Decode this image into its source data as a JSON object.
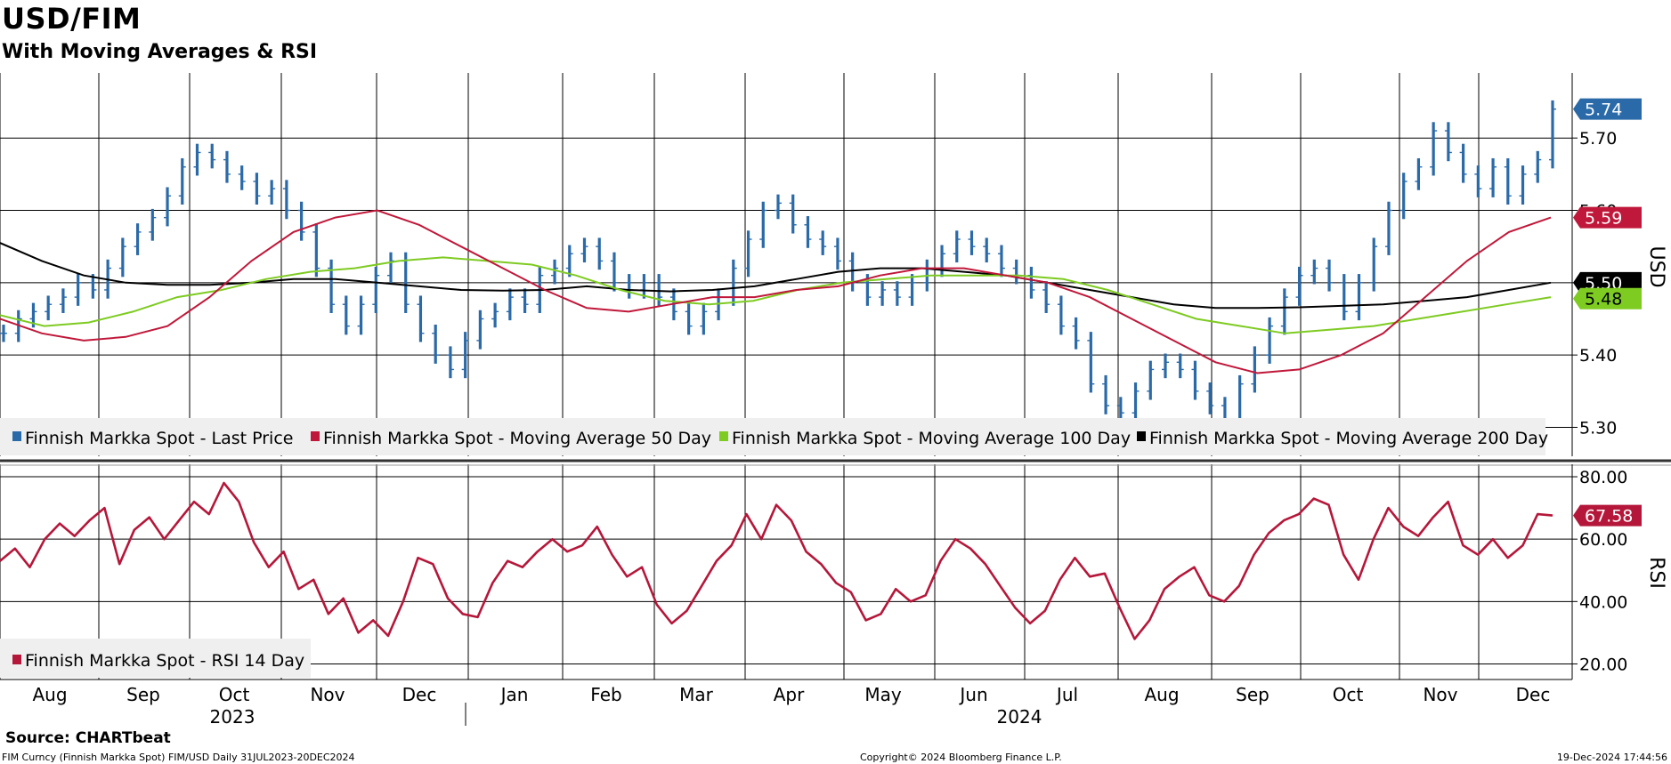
{
  "header": {
    "title": "USD/FIM",
    "subtitle": "With Moving Averages & RSI"
  },
  "footer": {
    "source": "Source: CHARTbeat",
    "description": "FIM Curncy (Finnish Markka Spot) FIM/USD  Daily 31JUL2023-20DEC2024",
    "copyright": "Copyright© 2024 Bloomberg Finance L.P.",
    "timestamp": "19-Dec-2024 17:44:56"
  },
  "colors": {
    "price": "#2b6aa8",
    "ma50": "#c0183a",
    "ma100": "#7ecb22",
    "ma200": "#000000",
    "rsi": "#b5173a",
    "grid": "#000000",
    "legend_bg": "#efefef"
  },
  "chart_data": [
    {
      "type": "line",
      "panel": "price",
      "ylabel": "USD",
      "ylim": [
        5.26,
        5.79
      ],
      "yticks": [
        "5.30",
        "5.40",
        "5.50",
        "5.60",
        "5.70"
      ],
      "x_month_labels": [
        "Aug",
        "Sep",
        "Oct",
        "Nov",
        "Dec",
        "Jan",
        "Feb",
        "Mar",
        "Apr",
        "May",
        "Jun",
        "Jul",
        "Aug",
        "Sep",
        "Oct",
        "Nov",
        "Dec"
      ],
      "year_labels": [
        "2023",
        "2024"
      ],
      "last_value_labels": {
        "price": "5.74",
        "ma50": "5.59",
        "ma200": "5.50",
        "ma100": "5.48"
      },
      "series": [
        {
          "name": "Finnish Markka Spot - Last Price",
          "color": "#2b6aa8",
          "values": [
            5.43,
            5.45,
            5.46,
            5.47,
            5.48,
            5.5,
            5.49,
            5.52,
            5.55,
            5.57,
            5.59,
            5.62,
            5.66,
            5.68,
            5.67,
            5.65,
            5.64,
            5.62,
            5.63,
            5.6,
            5.57,
            5.52,
            5.47,
            5.44,
            5.47,
            5.51,
            5.53,
            5.47,
            5.43,
            5.4,
            5.38,
            5.42,
            5.45,
            5.46,
            5.48,
            5.47,
            5.51,
            5.52,
            5.54,
            5.55,
            5.53,
            5.5,
            5.49,
            5.5,
            5.48,
            5.46,
            5.44,
            5.46,
            5.48,
            5.52,
            5.56,
            5.6,
            5.61,
            5.58,
            5.56,
            5.55,
            5.53,
            5.5,
            5.48,
            5.49,
            5.48,
            5.5,
            5.52,
            5.54,
            5.56,
            5.55,
            5.54,
            5.52,
            5.51,
            5.49,
            5.47,
            5.44,
            5.42,
            5.36,
            5.33,
            5.32,
            5.35,
            5.38,
            5.39,
            5.38,
            5.35,
            5.33,
            5.31,
            5.36,
            5.4,
            5.44,
            5.48,
            5.51,
            5.52,
            5.5,
            5.46,
            5.5,
            5.55,
            5.6,
            5.64,
            5.66,
            5.71,
            5.68,
            5.65,
            5.63,
            5.66,
            5.62,
            5.65,
            5.67,
            5.74
          ]
        },
        {
          "name": "Finnish Markka Spot - Moving Average 50 Day",
          "color": "#c0183a",
          "values": [
            5.45,
            5.43,
            5.42,
            5.425,
            5.44,
            5.48,
            5.53,
            5.57,
            5.59,
            5.6,
            5.58,
            5.55,
            5.52,
            5.49,
            5.465,
            5.46,
            5.47,
            5.48,
            5.48,
            5.49,
            5.495,
            5.51,
            5.52,
            5.52,
            5.51,
            5.5,
            5.48,
            5.45,
            5.42,
            5.39,
            5.375,
            5.38,
            5.4,
            5.43,
            5.48,
            5.53,
            5.57,
            5.59
          ]
        },
        {
          "name": "Finnish Markka Spot - Moving Average 100 Day",
          "color": "#7ecb22",
          "values": [
            5.455,
            5.44,
            5.445,
            5.46,
            5.48,
            5.49,
            5.505,
            5.515,
            5.52,
            5.53,
            5.535,
            5.53,
            5.525,
            5.51,
            5.49,
            5.475,
            5.47,
            5.475,
            5.49,
            5.5,
            5.505,
            5.51,
            5.51,
            5.51,
            5.505,
            5.49,
            5.47,
            5.45,
            5.44,
            5.43,
            5.435,
            5.44,
            5.45,
            5.46,
            5.47,
            5.48
          ]
        },
        {
          "name": "Finnish Markka Spot - Moving Average 200 Day",
          "color": "#000000",
          "values": [
            5.555,
            5.53,
            5.51,
            5.5,
            5.497,
            5.497,
            5.5,
            5.505,
            5.505,
            5.5,
            5.495,
            5.49,
            5.489,
            5.49,
            5.495,
            5.49,
            5.488,
            5.49,
            5.495,
            5.505,
            5.515,
            5.52,
            5.52,
            5.515,
            5.51,
            5.5,
            5.49,
            5.48,
            5.47,
            5.465,
            5.465,
            5.466,
            5.468,
            5.47,
            5.475,
            5.48,
            5.49,
            5.5
          ]
        }
      ]
    },
    {
      "type": "line",
      "panel": "rsi",
      "ylabel": "RSI",
      "ylim": [
        15,
        84
      ],
      "yticks": [
        "20.00",
        "40.00",
        "60.00",
        "80.00"
      ],
      "last_value_label": "67.58",
      "series": [
        {
          "name": "Finnish Markka Spot - RSI 14 Day",
          "color": "#b5173a",
          "values": [
            53,
            57,
            51,
            60,
            65,
            61,
            66,
            70,
            52,
            63,
            67,
            60,
            66,
            72,
            68,
            78,
            72,
            59,
            51,
            56,
            44,
            47,
            36,
            41,
            30,
            34,
            29,
            40,
            54,
            52,
            41,
            36,
            35,
            46,
            53,
            51,
            56,
            60,
            56,
            58,
            64,
            55,
            48,
            51,
            39,
            33,
            37,
            45,
            53,
            58,
            68,
            60,
            71,
            66,
            56,
            52,
            46,
            43,
            34,
            36,
            44,
            40,
            42,
            53,
            60,
            57,
            52,
            45,
            38,
            33,
            37,
            47,
            54,
            48,
            49,
            38,
            28,
            34,
            44,
            48,
            51,
            42,
            40,
            45,
            55,
            62,
            66,
            68,
            73,
            71,
            55,
            47,
            60,
            70,
            64,
            61,
            67,
            72,
            58,
            55,
            60,
            54,
            58,
            68,
            67.58
          ]
        }
      ]
    }
  ]
}
